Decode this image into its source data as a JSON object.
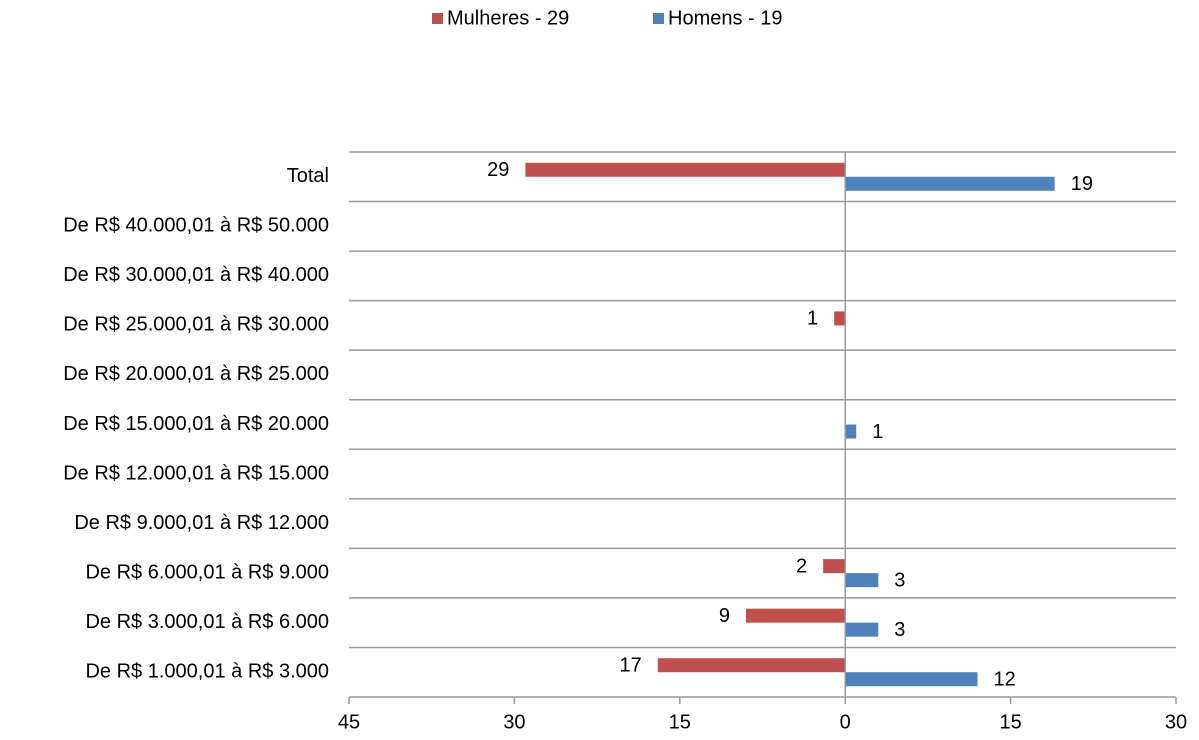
{
  "chart_data": {
    "type": "butterfly-bar",
    "categories": [
      "Total",
      "De R$ 40.000,01 à R$ 50.000",
      "De R$ 30.000,01 à R$ 40.000",
      "De R$ 25.000,01 à R$ 30.000",
      "De R$ 20.000,01 à R$ 25.000",
      "De R$ 15.000,01 à R$ 20.000",
      "De R$ 12.000,01 à R$ 15.000",
      "De R$ 9.000,01 à R$ 12.000",
      "De R$ 6.000,01 à R$ 9.000",
      "De R$ 3.000,01 à R$ 6.000",
      "De R$ 1.000,01 à R$ 3.000"
    ],
    "series": [
      {
        "name": "Mulheres - 29",
        "color": "#c0504d",
        "values": [
          -29,
          null,
          null,
          -1,
          null,
          null,
          null,
          null,
          -2,
          -9,
          -17
        ],
        "value_labels": [
          "29",
          null,
          null,
          "1",
          null,
          null,
          null,
          null,
          "2",
          "9",
          "17"
        ]
      },
      {
        "name": "Homens - 19",
        "color": "#4f81bd",
        "values": [
          19,
          null,
          null,
          null,
          null,
          1,
          null,
          null,
          3,
          3,
          12
        ],
        "value_labels": [
          "19",
          null,
          null,
          null,
          null,
          "1",
          null,
          null,
          "3",
          "3",
          "12"
        ]
      }
    ],
    "xlim": [
      -45,
      30
    ],
    "xticks": [
      {
        "value": -45,
        "label": "45"
      },
      {
        "value": -30,
        "label": "30"
      },
      {
        "value": -15,
        "label": "15"
      },
      0,
      15,
      30
    ],
    "legend": "top"
  }
}
